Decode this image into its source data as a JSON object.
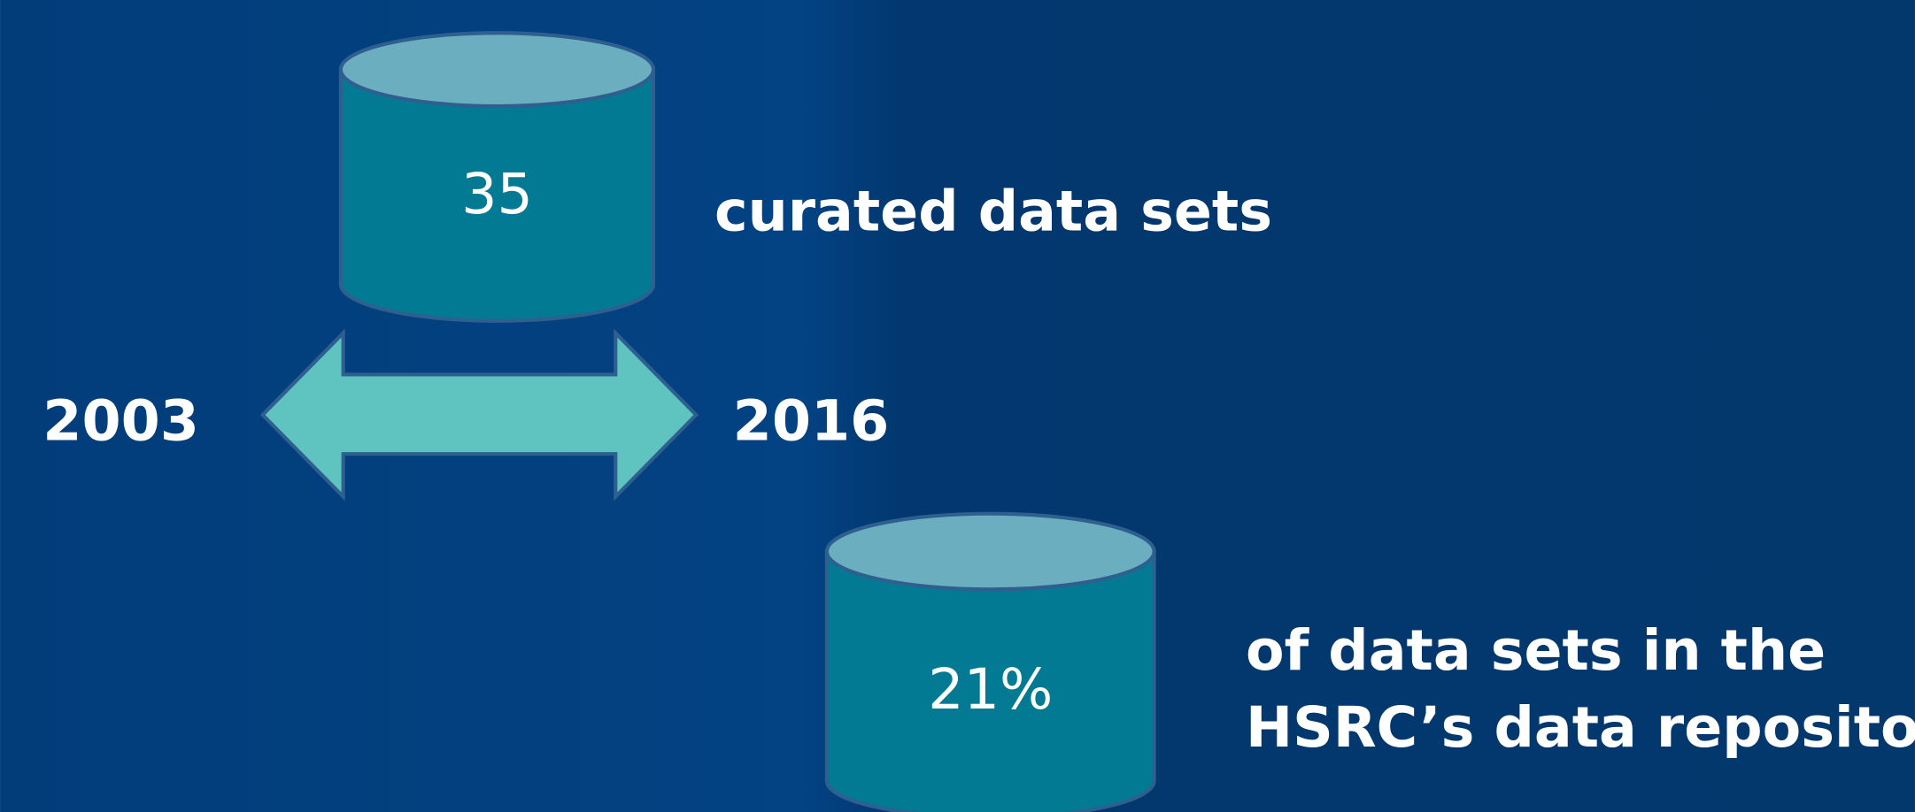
{
  "cylinders": [
    {
      "value": "35",
      "caption": [
        "curated data sets"
      ]
    },
    {
      "value": "21%",
      "caption": [
        "of data sets in the",
        "HSRC’s data repository"
      ]
    }
  ],
  "timeline": {
    "start": "2003",
    "end": "2016"
  }
}
